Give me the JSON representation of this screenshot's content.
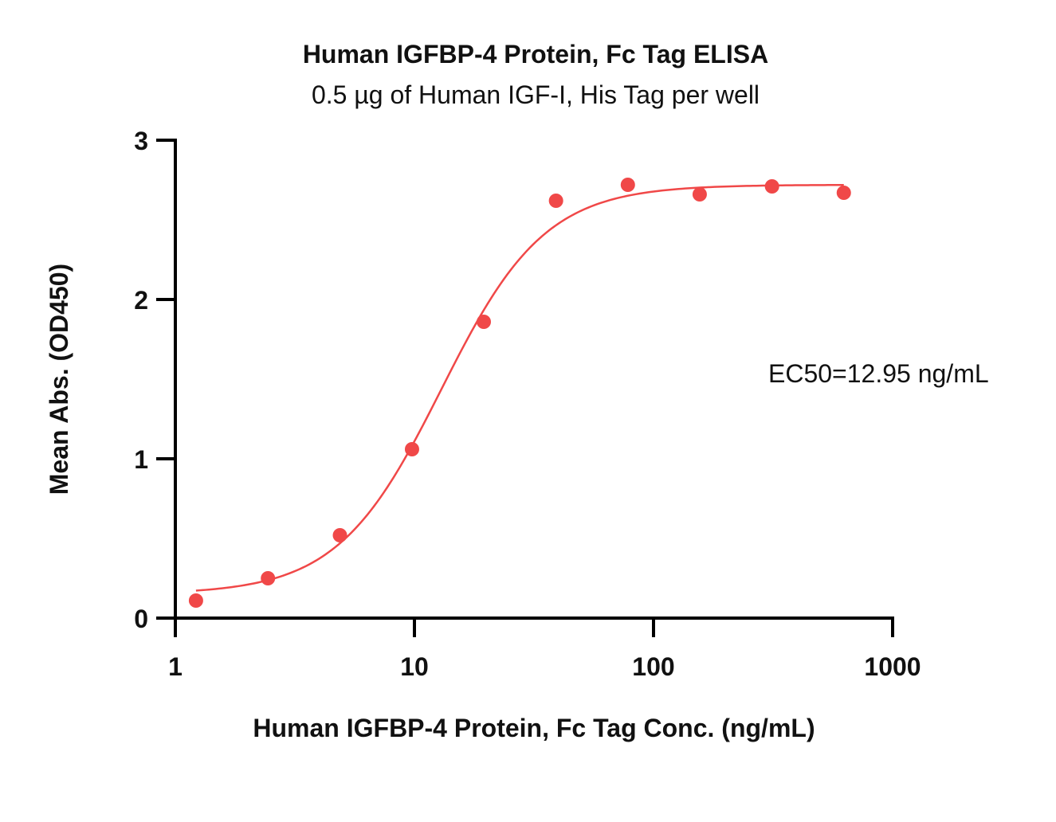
{
  "chart_data": {
    "type": "scatter",
    "title": "Human IGFBP-4 Protein, Fc Tag ELISA",
    "subtitle": "0.5 µg of Human IGF-I, His Tag per well",
    "xlabel": "Human IGFBP-4 Protein, Fc Tag Conc. (ng/mL)",
    "ylabel": "Mean Abs. (OD450)",
    "xscale": "log",
    "xlim": [
      1,
      1000
    ],
    "ylim": [
      0,
      3
    ],
    "x_ticks": [
      1,
      10,
      100,
      1000
    ],
    "x_tick_labels": [
      "1",
      "10",
      "100",
      "1000"
    ],
    "y_ticks": [
      0,
      1,
      2,
      3
    ],
    "y_tick_labels": [
      "0",
      "1",
      "2",
      "3"
    ],
    "grid": false,
    "series": [
      {
        "color": "#f04848",
        "x": [
          1.22,
          2.44,
          4.88,
          9.77,
          19.5,
          39.1,
          78.1,
          156,
          313,
          625
        ],
        "y": [
          0.11,
          0.25,
          0.52,
          1.06,
          1.86,
          2.62,
          2.72,
          2.66,
          2.71,
          2.67
        ]
      }
    ],
    "fit": {
      "model": "4PL",
      "bottom": 0.15,
      "top": 2.72,
      "ec50": 12.95,
      "hill": 2.0,
      "color": "#f04848"
    },
    "annotation": "EC50=12.95 ng/mL"
  }
}
